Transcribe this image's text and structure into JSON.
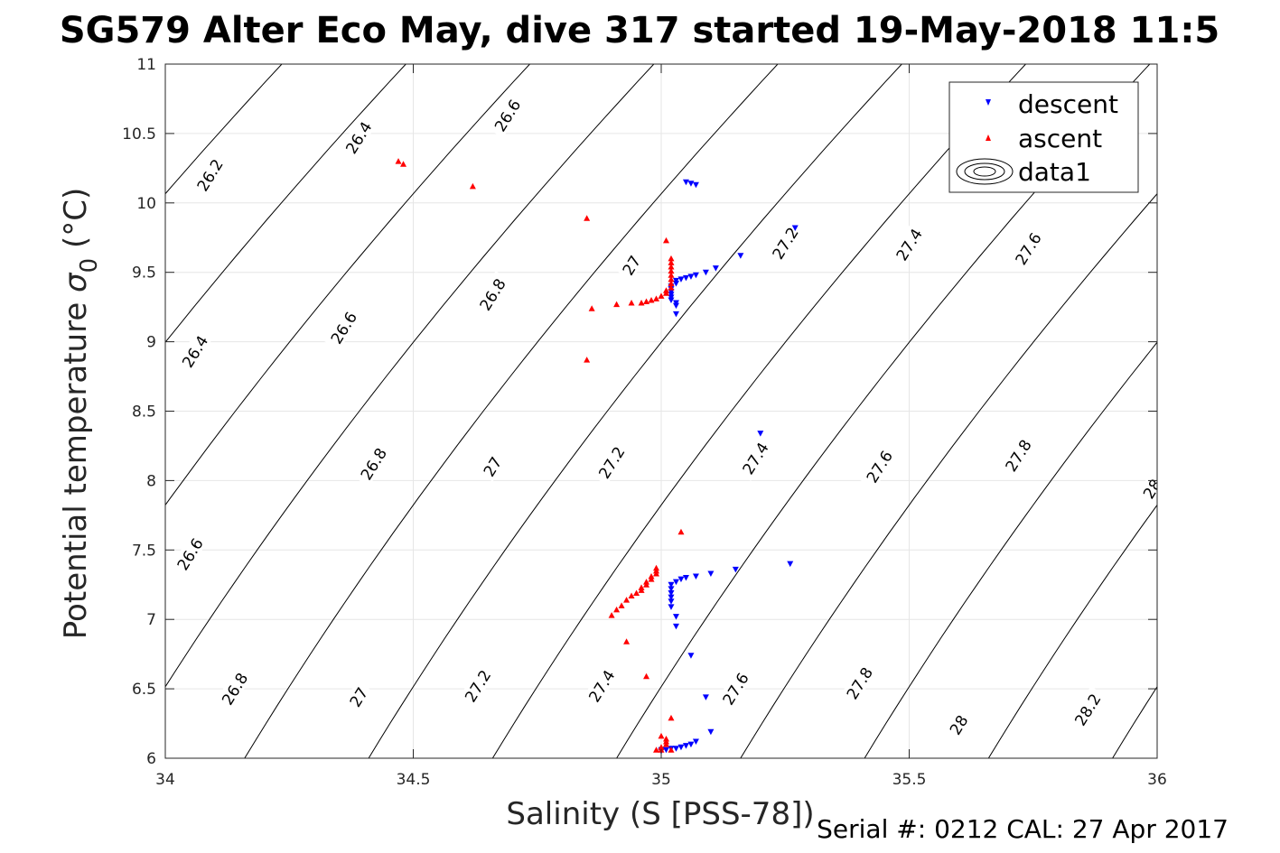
{
  "chart_data": {
    "type": "scatter",
    "title": "SG579 Alter Eco May, dive 317 started 19-May-2018 11:5",
    "xlabel": "Salinity (S [PSS-78])",
    "ylabel_main": "Potential temperature ",
    "ylabel_sigma": "σ",
    "ylabel_sub": "0",
    "ylabel_unit": " (°C)",
    "footer": "Serial #: 0212  CAL: 27 Apr 2017",
    "xlim": [
      34,
      36
    ],
    "ylim": [
      6,
      11
    ],
    "grid": true,
    "legend_position": "top-right",
    "x_ticks": [
      "34",
      "34.5",
      "35",
      "35.5",
      "36"
    ],
    "y_ticks": [
      "6",
      "6.5",
      "7",
      "7.5",
      "8",
      "8.5",
      "9",
      "9.5",
      "10",
      "10.5",
      "11"
    ],
    "contour_lines": [
      {
        "value": "26.2",
        "x_at_y6": 33.16
      },
      {
        "value": "26.4",
        "x_at_y6": 33.41
      },
      {
        "value": "26.6",
        "x_at_y6": 33.66
      },
      {
        "value": "26.8",
        "x_at_y6": 33.91
      },
      {
        "value": "27",
        "x_at_y6": 34.16
      },
      {
        "value": "27.2",
        "x_at_y6": 34.41
      },
      {
        "value": "27.4",
        "x_at_y6": 34.66
      },
      {
        "value": "27.6",
        "x_at_y6": 34.91
      },
      {
        "value": "27.8",
        "x_at_y6": 35.16
      },
      {
        "value": "28",
        "x_at_y6": 35.41
      },
      {
        "value": "28.2",
        "x_at_y6": 35.66
      },
      {
        "value": "28.4",
        "x_at_y6": 35.91
      }
    ],
    "contour_labels": [
      {
        "text": "26.2",
        "x": 34.09,
        "y": 10.2
      },
      {
        "text": "26.4",
        "x": 34.39,
        "y": 10.47
      },
      {
        "text": "26.6",
        "x": 34.69,
        "y": 10.63
      },
      {
        "text": "26.4",
        "x": 34.06,
        "y": 8.93
      },
      {
        "text": "26.6",
        "x": 34.36,
        "y": 9.1
      },
      {
        "text": "26.8",
        "x": 34.66,
        "y": 9.34
      },
      {
        "text": "27",
        "x": 34.94,
        "y": 9.55
      },
      {
        "text": "27.2",
        "x": 35.25,
        "y": 9.71
      },
      {
        "text": "27.4",
        "x": 35.5,
        "y": 9.7
      },
      {
        "text": "27.6",
        "x": 35.74,
        "y": 9.67
      },
      {
        "text": "26.6",
        "x": 34.05,
        "y": 7.47
      },
      {
        "text": "26.8",
        "x": 34.42,
        "y": 8.12
      },
      {
        "text": "27",
        "x": 34.66,
        "y": 8.1
      },
      {
        "text": "27.2",
        "x": 34.9,
        "y": 8.13
      },
      {
        "text": "27.4",
        "x": 35.19,
        "y": 8.16
      },
      {
        "text": "27.6",
        "x": 35.44,
        "y": 8.1
      },
      {
        "text": "27.8",
        "x": 35.72,
        "y": 8.18
      },
      {
        "text": "28",
        "x": 35.99,
        "y": 7.94
      },
      {
        "text": "26.8",
        "x": 34.14,
        "y": 6.5
      },
      {
        "text": "27",
        "x": 34.39,
        "y": 6.44
      },
      {
        "text": "27.2",
        "x": 34.63,
        "y": 6.52
      },
      {
        "text": "27.4",
        "x": 34.88,
        "y": 6.52
      },
      {
        "text": "27.6",
        "x": 35.15,
        "y": 6.5
      },
      {
        "text": "27.8",
        "x": 35.4,
        "y": 6.54
      },
      {
        "text": "28",
        "x": 35.6,
        "y": 6.24
      },
      {
        "text": "28.2",
        "x": 35.86,
        "y": 6.35
      }
    ],
    "series": [
      {
        "name": "descent",
        "color": "#0000ff",
        "marker": "triangle-down",
        "points": [
          [
            35.05,
            10.15
          ],
          [
            35.06,
            10.14
          ],
          [
            35.07,
            10.13
          ],
          [
            35.27,
            9.82
          ],
          [
            35.16,
            9.62
          ],
          [
            35.11,
            9.53
          ],
          [
            35.09,
            9.5
          ],
          [
            35.07,
            9.48
          ],
          [
            35.06,
            9.47
          ],
          [
            35.05,
            9.46
          ],
          [
            35.04,
            9.45
          ],
          [
            35.03,
            9.44
          ],
          [
            35.03,
            9.42
          ],
          [
            35.02,
            9.4
          ],
          [
            35.02,
            9.38
          ],
          [
            35.02,
            9.36
          ],
          [
            35.02,
            9.34
          ],
          [
            35.02,
            9.32
          ],
          [
            35.02,
            9.3
          ],
          [
            35.03,
            9.28
          ],
          [
            35.03,
            9.26
          ],
          [
            35.03,
            9.2
          ],
          [
            35.2,
            8.34
          ],
          [
            35.26,
            7.4
          ],
          [
            35.15,
            7.36
          ],
          [
            35.1,
            7.33
          ],
          [
            35.07,
            7.31
          ],
          [
            35.05,
            7.3
          ],
          [
            35.04,
            7.29
          ],
          [
            35.03,
            7.27
          ],
          [
            35.02,
            7.25
          ],
          [
            35.02,
            7.22
          ],
          [
            35.02,
            7.19
          ],
          [
            35.02,
            7.16
          ],
          [
            35.02,
            7.13
          ],
          [
            35.02,
            7.09
          ],
          [
            35.03,
            7.02
          ],
          [
            35.03,
            6.95
          ],
          [
            35.06,
            6.74
          ],
          [
            35.09,
            6.44
          ],
          [
            35.1,
            6.19
          ],
          [
            35.07,
            6.12
          ],
          [
            35.06,
            6.1
          ],
          [
            35.05,
            6.09
          ],
          [
            35.04,
            6.08
          ],
          [
            35.03,
            6.07
          ],
          [
            35.02,
            6.07
          ],
          [
            35.01,
            6.06
          ],
          [
            35.0,
            6.06
          ],
          [
            35.0,
            6.05
          ]
        ]
      },
      {
        "name": "ascent",
        "color": "#ff0000",
        "marker": "triangle-up",
        "points": [
          [
            34.47,
            10.3
          ],
          [
            34.48,
            10.28
          ],
          [
            34.62,
            10.12
          ],
          [
            34.85,
            9.89
          ],
          [
            35.01,
            9.73
          ],
          [
            35.02,
            9.6
          ],
          [
            35.02,
            9.57
          ],
          [
            35.02,
            9.54
          ],
          [
            35.02,
            9.51
          ],
          [
            35.02,
            9.48
          ],
          [
            35.02,
            9.45
          ],
          [
            35.02,
            9.42
          ],
          [
            35.02,
            9.39
          ],
          [
            35.01,
            9.37
          ],
          [
            35.01,
            9.35
          ],
          [
            35.0,
            9.33
          ],
          [
            34.99,
            9.31
          ],
          [
            34.98,
            9.3
          ],
          [
            34.97,
            9.29
          ],
          [
            34.96,
            9.28
          ],
          [
            34.94,
            9.28
          ],
          [
            34.91,
            9.27
          ],
          [
            34.86,
            9.24
          ],
          [
            34.85,
            8.87
          ],
          [
            35.04,
            7.63
          ],
          [
            34.99,
            7.37
          ],
          [
            34.99,
            7.35
          ],
          [
            34.99,
            7.33
          ],
          [
            34.98,
            7.31
          ],
          [
            34.98,
            7.29
          ],
          [
            34.97,
            7.27
          ],
          [
            34.97,
            7.25
          ],
          [
            34.96,
            7.23
          ],
          [
            34.96,
            7.21
          ],
          [
            34.95,
            7.19
          ],
          [
            34.94,
            7.17
          ],
          [
            34.93,
            7.14
          ],
          [
            34.92,
            7.1
          ],
          [
            34.91,
            7.07
          ],
          [
            34.9,
            7.03
          ],
          [
            34.93,
            6.84
          ],
          [
            34.97,
            6.59
          ],
          [
            35.02,
            6.29
          ],
          [
            35.0,
            6.16
          ],
          [
            35.01,
            6.14
          ],
          [
            35.01,
            6.12
          ],
          [
            35.01,
            6.1
          ],
          [
            35.0,
            6.08
          ],
          [
            35.0,
            6.06
          ],
          [
            34.99,
            6.06
          ],
          [
            35.02,
            6.06
          ]
        ]
      }
    ],
    "legend": [
      {
        "name": "descent",
        "marker": "triangle-down",
        "color": "#0000ff"
      },
      {
        "name": "ascent",
        "marker": "triangle-up",
        "color": "#ff0000"
      },
      {
        "name": "data1",
        "marker": "contour",
        "color": "#000000"
      }
    ]
  }
}
